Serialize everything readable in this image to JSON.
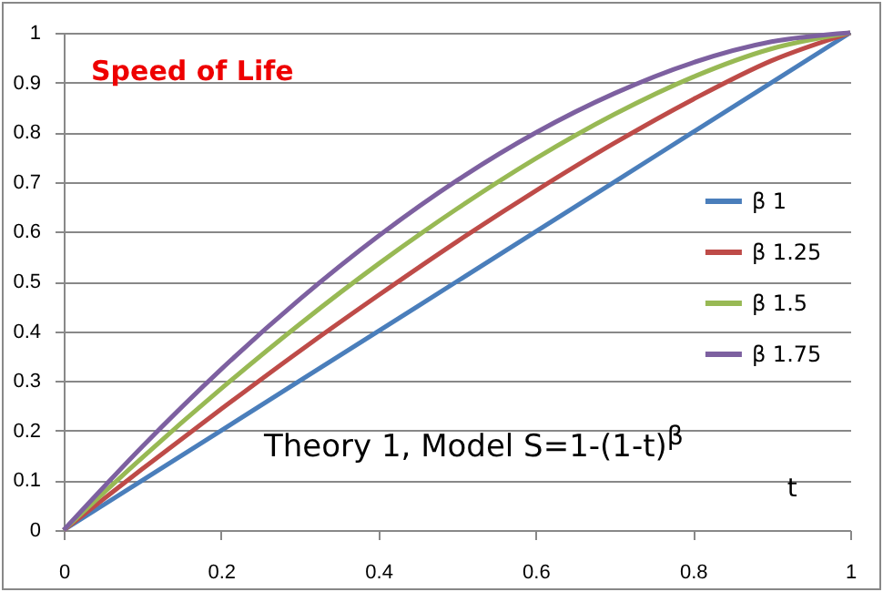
{
  "chart_data": {
    "type": "line",
    "xlabel": "t",
    "x": [
      0,
      0.1,
      0.2,
      0.3,
      0.4,
      0.5,
      0.6,
      0.7,
      0.8,
      0.9,
      1
    ],
    "series": [
      {
        "name": "β 1",
        "color": "#4a7ebb",
        "values": [
          0,
          0.1,
          0.2,
          0.3,
          0.4,
          0.5,
          0.6,
          0.7,
          0.8,
          0.9,
          1
        ]
      },
      {
        "name": "β 1.25",
        "color": "#be4b48",
        "values": [
          0,
          0.123,
          0.243,
          0.36,
          0.472,
          0.58,
          0.682,
          0.778,
          0.866,
          0.944,
          1
        ]
      },
      {
        "name": "β 1.5",
        "color": "#98b954",
        "values": [
          0,
          0.146,
          0.284,
          0.414,
          0.535,
          0.646,
          0.747,
          0.836,
          0.911,
          0.968,
          1
        ]
      },
      {
        "name": "β 1.75",
        "color": "#7d60a0",
        "values": [
          0,
          0.168,
          0.323,
          0.464,
          0.591,
          0.703,
          0.799,
          0.878,
          0.94,
          0.982,
          1
        ]
      }
    ],
    "xlim": [
      0,
      1
    ],
    "xticks": [
      0,
      0.2,
      0.4,
      0.6,
      0.8,
      1
    ],
    "ylim": [
      0,
      1
    ],
    "yticks": [
      0,
      0.1,
      0.2,
      0.3,
      0.4,
      0.5,
      0.6,
      0.7,
      0.8,
      0.9,
      1
    ],
    "grid": "y",
    "legend": "right",
    "annotations": [
      "Speed of Life",
      "Theory 1, Model  S=1-(1-t)$^{β}$"
    ]
  }
}
